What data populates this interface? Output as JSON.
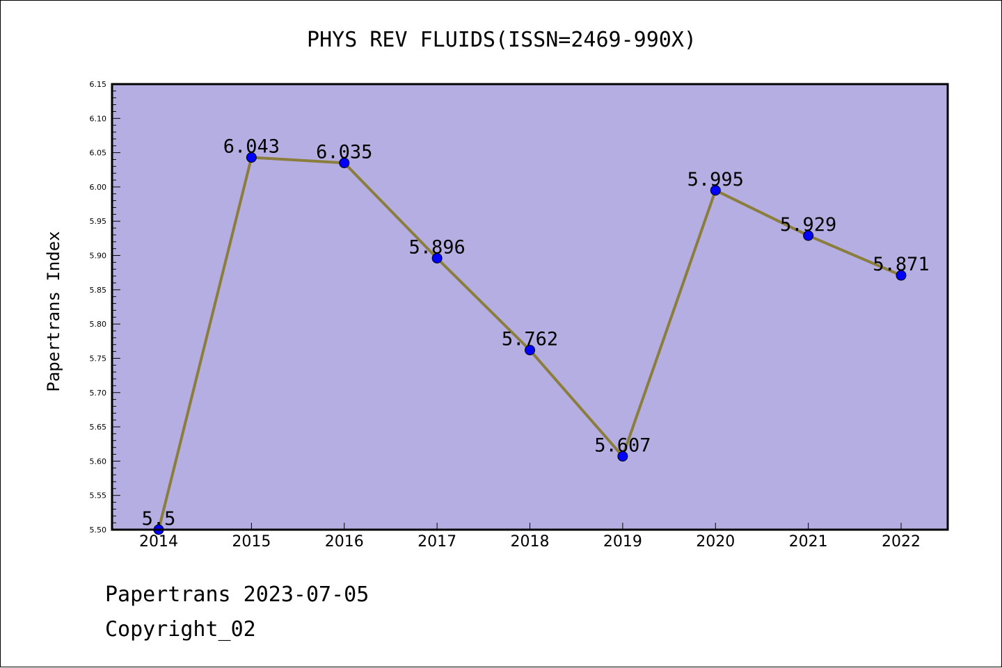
{
  "chart_data": {
    "type": "line",
    "title": "PHYS REV FLUIDS(ISSN=2469-990X)",
    "xlabel": "",
    "ylabel": "Papertrans Index",
    "categories": [
      "2014",
      "2015",
      "2016",
      "2017",
      "2018",
      "2019",
      "2020",
      "2021",
      "2022"
    ],
    "values": [
      5.5,
      6.043,
      6.035,
      5.896,
      5.762,
      5.607,
      5.995,
      5.929,
      5.871
    ],
    "data_labels": [
      "5.5",
      "6.043",
      "6.035",
      "5.896",
      "5.762",
      "5.607",
      "5.995",
      "5.929",
      "5.871"
    ],
    "ylim": [
      5.5,
      6.15
    ],
    "yticks": [
      "5.50",
      "5.55",
      "5.60",
      "5.65",
      "5.70",
      "5.75",
      "5.80",
      "5.85",
      "5.90",
      "5.95",
      "6.00",
      "6.05",
      "6.10",
      "6.15"
    ],
    "grid": false,
    "legend": "none",
    "colors": {
      "plot_background": "#b5aee2",
      "line": "#8b7d3c",
      "marker": "#0000ff",
      "axis": "#000000"
    }
  },
  "footer": {
    "line1": "Papertrans 2023-07-05",
    "line2": "Copyright_02"
  }
}
